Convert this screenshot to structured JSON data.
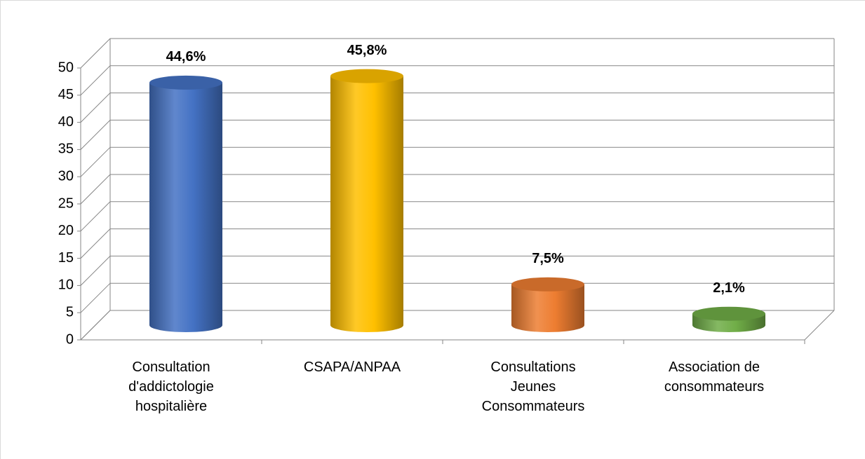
{
  "chart_data": {
    "type": "bar3d",
    "categories": [
      "Consultation d'addictologie hospitalière",
      "CSAPA/ANPAA",
      "Consultations Jeunes Consommateurs",
      "Association de consommateurs"
    ],
    "values": [
      44.6,
      45.8,
      7.5,
      2.1
    ],
    "value_labels": [
      "44,6%",
      "45,8%",
      "7,5%",
      "2,1%"
    ],
    "colors": [
      "#4472c4",
      "#ffc000",
      "#ed7d31",
      "#70ad47"
    ],
    "ylim": [
      0,
      50
    ],
    "yticks": [
      0,
      5,
      10,
      15,
      20,
      25,
      30,
      35,
      40,
      45,
      50
    ],
    "grid": true
  }
}
